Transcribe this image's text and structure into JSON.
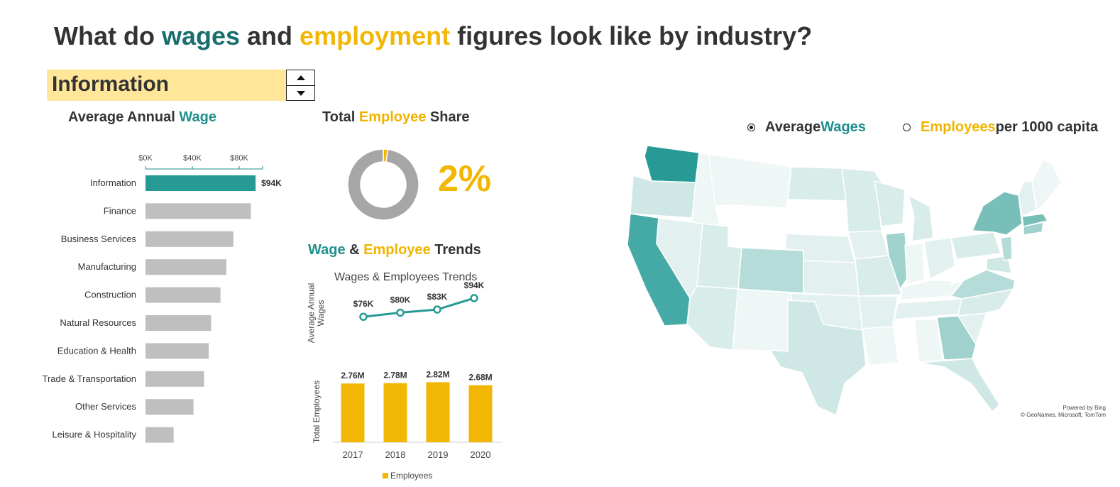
{
  "title": {
    "part1": "What do ",
    "wages": "wages",
    "part2": " and ",
    "employment": "employment",
    "part3": " figures look like by industry?"
  },
  "selector": {
    "value": "Information"
  },
  "wage_chart_title": {
    "a": "Average Annual ",
    "b": "Wage"
  },
  "share_title": {
    "a": "Total ",
    "b": "Employee",
    "c": " Share"
  },
  "share_value": "2%",
  "trend_title": {
    "a": "Wage",
    "b": " & ",
    "c": "Employee",
    "d": " Trends"
  },
  "legend": "Employees",
  "map_options": {
    "wages": {
      "a": "Average ",
      "b": "Wages",
      "selected": true
    },
    "employees": {
      "a": "Employees",
      "b": " per 1000 capita",
      "selected": false
    }
  },
  "map_credit": {
    "line1": "Powered by Bing",
    "line2": "© GeoNames, Microsoft, TomTom"
  },
  "colors": {
    "teal": "#279a96",
    "gold": "#f2b705",
    "gray": "#bfbfbf"
  },
  "chart_data": [
    {
      "type": "bar",
      "orientation": "horizontal",
      "categories": [
        "Information",
        "Finance",
        "Business Services",
        "Manufacturing",
        "Construction",
        "Natural Resources",
        "Education & Health",
        "Trade & Transportation",
        "Other Services",
        "Leisure & Hospitality"
      ],
      "values": [
        94,
        90,
        75,
        69,
        64,
        56,
        54,
        50,
        41,
        24
      ],
      "highlight": "Information",
      "highlight_label": "$94K",
      "axis_ticks": [
        "$0K",
        "$40K",
        "$80K"
      ],
      "xlim": [
        0,
        100
      ]
    },
    {
      "type": "pie",
      "subtype": "donut",
      "slices": [
        {
          "value": 2
        },
        {
          "value": 98
        }
      ]
    },
    {
      "type": "line",
      "title": "Wages & Employees Trends",
      "ylabel": "Average Annual Wages",
      "x": [
        "2017",
        "2018",
        "2019",
        "2020"
      ],
      "values": [
        76,
        80,
        83,
        94
      ],
      "labels": [
        "$76K",
        "$80K",
        "$83K",
        "$94K"
      ]
    },
    {
      "type": "bar",
      "ylabel": "Total Employees",
      "categories": [
        "2017",
        "2018",
        "2019",
        "2020"
      ],
      "values": [
        2.76,
        2.78,
        2.82,
        2.68
      ],
      "labels": [
        "2.76M",
        "2.78M",
        "2.82M",
        "2.68M"
      ],
      "series": [
        {
          "name": "Employees"
        }
      ]
    },
    {
      "type": "map",
      "region": "United States",
      "metric": "Average Wages",
      "highlighted_states": {
        "Washington": "high",
        "California": "high",
        "New York": "mid-high",
        "Massachusetts": "mid-high",
        "Colorado": "mid",
        "Illinois": "mid",
        "Georgia": "mid",
        "Wyoming": "lowest"
      }
    }
  ]
}
